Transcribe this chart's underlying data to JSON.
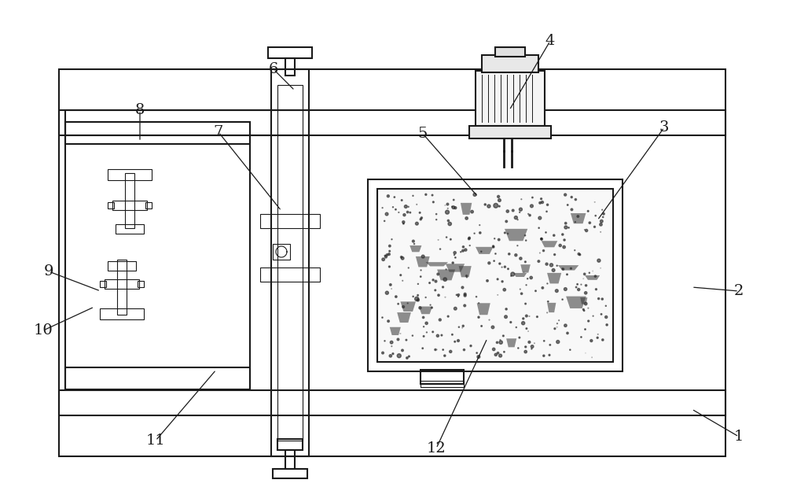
{
  "bg_color": "#ffffff",
  "line_color": "#1a1a1a",
  "lw_main": 1.5,
  "lw_thin": 0.8,
  "figure_width": 10.0,
  "figure_height": 6.19,
  "dpi": 100
}
